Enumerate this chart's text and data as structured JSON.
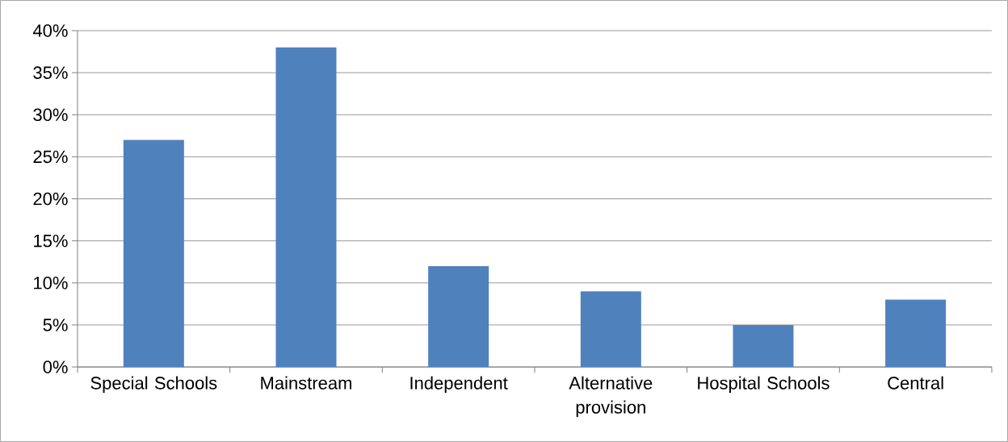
{
  "chart_data": {
    "type": "bar",
    "categories": [
      "Special Schools",
      "Mainstream",
      "Independent",
      "Alternative provision",
      "Hospital Schools",
      "Central"
    ],
    "values": [
      27,
      38,
      12,
      9,
      5,
      8
    ],
    "color": "#4f81bd",
    "ylim": [
      0,
      40
    ],
    "yticks": [
      {
        "value": 0,
        "label": "0%"
      },
      {
        "value": 5,
        "label": "5%"
      },
      {
        "value": 10,
        "label": "10%"
      },
      {
        "value": 15,
        "label": "15%"
      },
      {
        "value": 20,
        "label": "20%"
      },
      {
        "value": 25,
        "label": "25%"
      },
      {
        "value": 30,
        "label": "30%"
      },
      {
        "value": 35,
        "label": "35%"
      },
      {
        "value": 40,
        "label": "40%"
      }
    ],
    "grid": "y"
  }
}
